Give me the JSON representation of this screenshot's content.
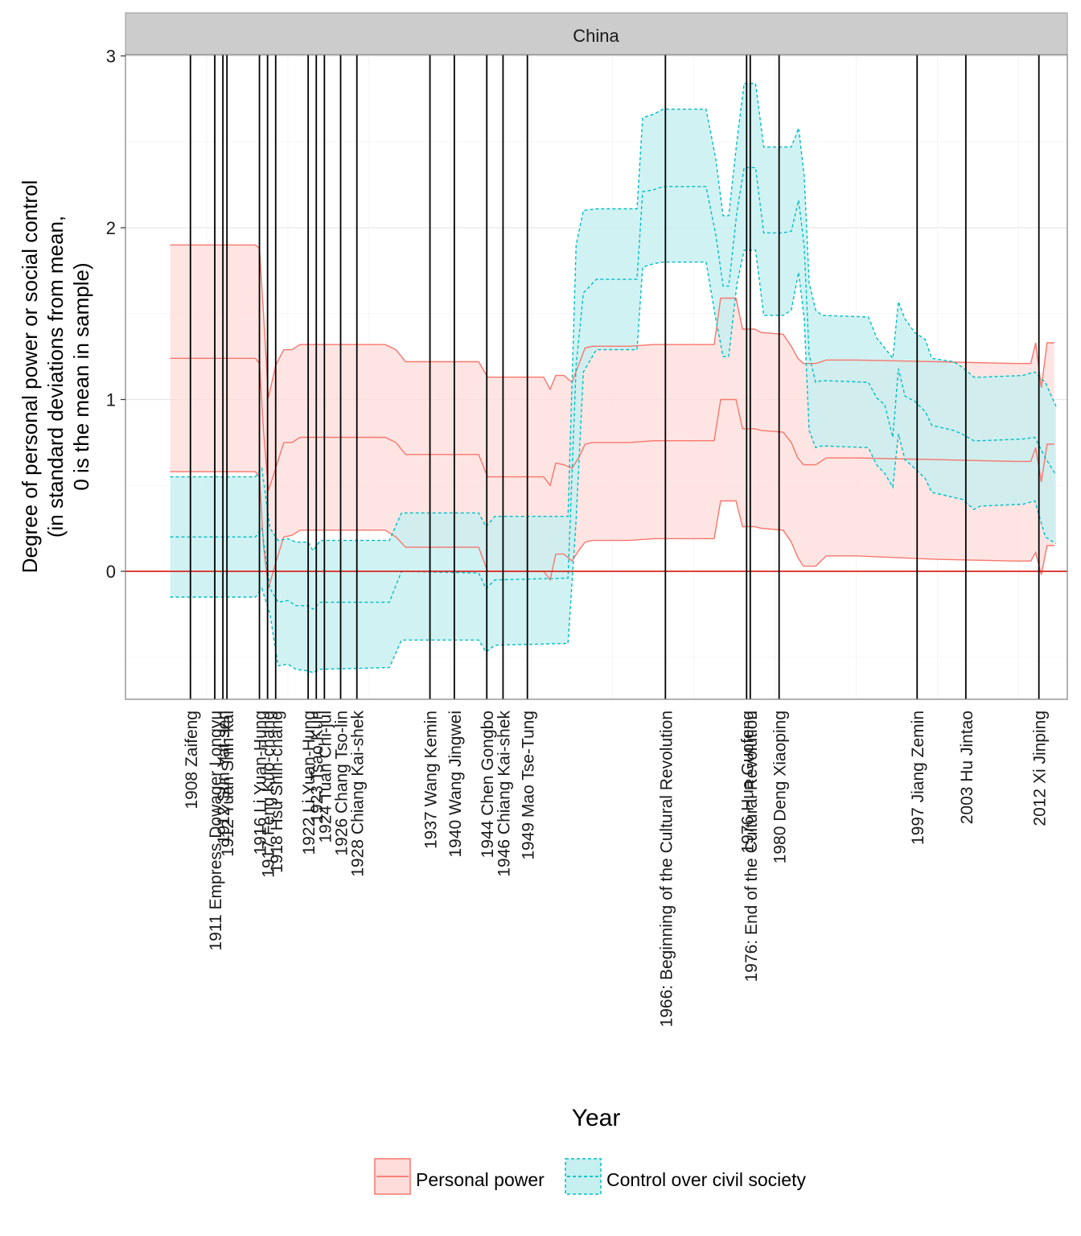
{
  "chart_data": {
    "type": "area",
    "facet_label": "China",
    "xlabel": "Year",
    "ylabel_lines": [
      "Degree of personal power or social control",
      "(in standard deviations from mean,",
      "0 is the mean in sample)"
    ],
    "xlim": [
      1900,
      2016
    ],
    "ylim": [
      -0.75,
      3.0
    ],
    "y_ticks": [
      0,
      1,
      2,
      3
    ],
    "reference_line_y": 0,
    "grid": true,
    "legend_position": "bottom",
    "colors": {
      "personal_power": "#F8766D",
      "personal_power_fill": "#FDDCDA",
      "civil_society": "#00BFC4",
      "civil_society_fill": "#C6EFF0",
      "zero_line": "#D7261E",
      "event_line": "#000000",
      "strip": "#CCCCCC"
    },
    "series": [
      {
        "name": "Personal power",
        "line_style": "solid",
        "points": [
          {
            "x": 1905.5,
            "mid": 1.24,
            "lo": 0.58,
            "hi": 1.9
          },
          {
            "x": 1916.0,
            "mid": 1.24,
            "lo": 0.58,
            "hi": 1.9
          },
          {
            "x": 1916.5,
            "mid": 1.21,
            "lo": 0.55,
            "hi": 1.88
          },
          {
            "x": 1917.0,
            "mid": 0.82,
            "lo": 0.15,
            "hi": 1.5
          },
          {
            "x": 1917.6,
            "mid": 0.47,
            "lo": -0.1,
            "hi": 1.01
          },
          {
            "x": 1918.5,
            "mid": 0.6,
            "lo": 0.05,
            "hi": 1.2
          },
          {
            "x": 1919.5,
            "mid": 0.75,
            "lo": 0.2,
            "hi": 1.29
          },
          {
            "x": 1920.5,
            "mid": 0.75,
            "lo": 0.21,
            "hi": 1.29
          },
          {
            "x": 1921.5,
            "mid": 0.78,
            "lo": 0.24,
            "hi": 1.32
          },
          {
            "x": 1932.0,
            "mid": 0.78,
            "lo": 0.24,
            "hi": 1.32
          },
          {
            "x": 1933.3,
            "mid": 0.75,
            "lo": 0.2,
            "hi": 1.29
          },
          {
            "x": 1934.5,
            "mid": 0.68,
            "lo": 0.14,
            "hi": 1.22
          },
          {
            "x": 1943.5,
            "mid": 0.68,
            "lo": 0.14,
            "hi": 1.22
          },
          {
            "x": 1944.6,
            "mid": 0.55,
            "lo": 0.0,
            "hi": 1.13
          },
          {
            "x": 1951.5,
            "mid": 0.55,
            "lo": 0.0,
            "hi": 1.13
          },
          {
            "x": 1952.3,
            "mid": 0.5,
            "lo": -0.05,
            "hi": 1.06
          },
          {
            "x": 1953.0,
            "mid": 0.63,
            "lo": 0.1,
            "hi": 1.14
          },
          {
            "x": 1954.0,
            "mid": 0.62,
            "lo": 0.1,
            "hi": 1.14
          },
          {
            "x": 1955.0,
            "mid": 0.6,
            "lo": 0.06,
            "hi": 1.1
          },
          {
            "x": 1955.8,
            "mid": 0.66,
            "lo": 0.12,
            "hi": 1.2
          },
          {
            "x": 1956.6,
            "mid": 0.74,
            "lo": 0.17,
            "hi": 1.3
          },
          {
            "x": 1957.5,
            "mid": 0.75,
            "lo": 0.18,
            "hi": 1.31
          },
          {
            "x": 1962.0,
            "mid": 0.75,
            "lo": 0.18,
            "hi": 1.31
          },
          {
            "x": 1965.0,
            "mid": 0.76,
            "lo": 0.19,
            "hi": 1.32
          },
          {
            "x": 1972.5,
            "mid": 0.76,
            "lo": 0.19,
            "hi": 1.32
          },
          {
            "x": 1973.3,
            "mid": 1.0,
            "lo": 0.41,
            "hi": 1.59
          },
          {
            "x": 1975.2,
            "mid": 1.0,
            "lo": 0.41,
            "hi": 1.59
          },
          {
            "x": 1976.0,
            "mid": 0.83,
            "lo": 0.26,
            "hi": 1.41
          },
          {
            "x": 1977.5,
            "mid": 0.83,
            "lo": 0.26,
            "hi": 1.41
          },
          {
            "x": 1978.3,
            "mid": 0.82,
            "lo": 0.25,
            "hi": 1.39
          },
          {
            "x": 1981.0,
            "mid": 0.81,
            "lo": 0.24,
            "hi": 1.38
          },
          {
            "x": 1982.0,
            "mid": 0.75,
            "lo": 0.17,
            "hi": 1.31
          },
          {
            "x": 1982.8,
            "mid": 0.66,
            "lo": 0.08,
            "hi": 1.24
          },
          {
            "x": 1983.5,
            "mid": 0.62,
            "lo": 0.03,
            "hi": 1.21
          },
          {
            "x": 1985.0,
            "mid": 0.62,
            "lo": 0.03,
            "hi": 1.21
          },
          {
            "x": 1986.3,
            "mid": 0.66,
            "lo": 0.09,
            "hi": 1.23
          },
          {
            "x": 1990.0,
            "mid": 0.66,
            "lo": 0.09,
            "hi": 1.23
          },
          {
            "x": 2000.0,
            "mid": 0.65,
            "lo": 0.07,
            "hi": 1.22
          },
          {
            "x": 2009.5,
            "mid": 0.64,
            "lo": 0.06,
            "hi": 1.21
          },
          {
            "x": 2011.5,
            "mid": 0.64,
            "lo": 0.06,
            "hi": 1.21
          },
          {
            "x": 2012.1,
            "mid": 0.72,
            "lo": 0.11,
            "hi": 1.33
          },
          {
            "x": 2012.8,
            "mid": 0.52,
            "lo": -0.02,
            "hi": 1.07
          },
          {
            "x": 2013.5,
            "mid": 0.74,
            "lo": 0.15,
            "hi": 1.33
          },
          {
            "x": 2014.4,
            "mid": 0.74,
            "lo": 0.15,
            "hi": 1.33
          }
        ]
      },
      {
        "name": "Control over civil society",
        "line_style": "dashed",
        "points": [
          {
            "x": 1905.5,
            "mid": 0.2,
            "lo": -0.15,
            "hi": 0.55
          },
          {
            "x": 1916.0,
            "mid": 0.2,
            "lo": -0.15,
            "hi": 0.55
          },
          {
            "x": 1916.8,
            "mid": 0.25,
            "lo": -0.1,
            "hi": 0.6
          },
          {
            "x": 1917.8,
            "mid": -0.1,
            "lo": -0.25,
            "hi": 0.25
          },
          {
            "x": 1918.8,
            "mid": -0.18,
            "lo": -0.55,
            "hi": 0.18
          },
          {
            "x": 1920.0,
            "mid": -0.17,
            "lo": -0.54,
            "hi": 0.19
          },
          {
            "x": 1921.0,
            "mid": -0.2,
            "lo": -0.57,
            "hi": 0.17
          },
          {
            "x": 1922.5,
            "mid": -0.2,
            "lo": -0.58,
            "hi": 0.17
          },
          {
            "x": 1923.1,
            "mid": -0.22,
            "lo": -0.59,
            "hi": 0.12
          },
          {
            "x": 1924.0,
            "mid": -0.18,
            "lo": -0.57,
            "hi": 0.18
          },
          {
            "x": 1932.5,
            "mid": -0.18,
            "lo": -0.56,
            "hi": 0.18
          },
          {
            "x": 1934.0,
            "mid": 0.0,
            "lo": -0.4,
            "hi": 0.34
          },
          {
            "x": 1943.5,
            "mid": -0.01,
            "lo": -0.4,
            "hi": 0.34
          },
          {
            "x": 1944.4,
            "mid": -0.1,
            "lo": -0.47,
            "hi": 0.26
          },
          {
            "x": 1945.5,
            "mid": -0.05,
            "lo": -0.43,
            "hi": 0.32
          },
          {
            "x": 1954.0,
            "mid": -0.04,
            "lo": -0.42,
            "hi": 0.32
          },
          {
            "x": 1954.5,
            "mid": -0.04,
            "lo": -0.42,
            "hi": 0.32
          },
          {
            "x": 1955.5,
            "mid": 1.2,
            "lo": 0.3,
            "hi": 1.9
          },
          {
            "x": 1956.4,
            "mid": 1.62,
            "lo": 1.16,
            "hi": 2.1
          },
          {
            "x": 1958.0,
            "mid": 1.7,
            "lo": 1.29,
            "hi": 2.11
          },
          {
            "x": 1963.0,
            "mid": 1.7,
            "lo": 1.29,
            "hi": 2.11
          },
          {
            "x": 1963.7,
            "mid": 2.21,
            "lo": 1.77,
            "hi": 2.64
          },
          {
            "x": 1965.0,
            "mid": 2.22,
            "lo": 1.79,
            "hi": 2.66
          },
          {
            "x": 1966.2,
            "mid": 2.24,
            "lo": 1.8,
            "hi": 2.69
          },
          {
            "x": 1971.5,
            "mid": 2.24,
            "lo": 1.8,
            "hi": 2.69
          },
          {
            "x": 1972.7,
            "mid": 1.96,
            "lo": 1.47,
            "hi": 2.4
          },
          {
            "x": 1973.6,
            "mid": 1.66,
            "lo": 1.25,
            "hi": 2.07
          },
          {
            "x": 1974.3,
            "mid": 1.66,
            "lo": 1.25,
            "hi": 2.07
          },
          {
            "x": 1975.3,
            "mid": 2.09,
            "lo": 1.67,
            "hi": 2.5
          },
          {
            "x": 1976.2,
            "mid": 2.35,
            "lo": 1.87,
            "hi": 2.84
          },
          {
            "x": 1977.6,
            "mid": 2.35,
            "lo": 1.87,
            "hi": 2.84
          },
          {
            "x": 1978.6,
            "mid": 1.97,
            "lo": 1.49,
            "hi": 2.47
          },
          {
            "x": 1981.0,
            "mid": 1.97,
            "lo": 1.49,
            "hi": 2.47
          },
          {
            "x": 1982.0,
            "mid": 1.98,
            "lo": 1.52,
            "hi": 2.47
          },
          {
            "x": 1982.9,
            "mid": 2.16,
            "lo": 1.74,
            "hi": 2.58
          },
          {
            "x": 1983.6,
            "mid": 1.89,
            "lo": 1.47,
            "hi": 2.3
          },
          {
            "x": 1984.2,
            "mid": 1.26,
            "lo": 0.82,
            "hi": 1.68
          },
          {
            "x": 1985.0,
            "mid": 1.1,
            "lo": 0.72,
            "hi": 1.52
          },
          {
            "x": 1985.8,
            "mid": 1.11,
            "lo": 0.73,
            "hi": 1.49
          },
          {
            "x": 1991.5,
            "mid": 1.1,
            "lo": 0.72,
            "hi": 1.48
          },
          {
            "x": 1992.5,
            "mid": 1.01,
            "lo": 0.62,
            "hi": 1.36
          },
          {
            "x": 1993.5,
            "mid": 0.97,
            "lo": 0.57,
            "hi": 1.3
          },
          {
            "x": 1994.5,
            "mid": 0.78,
            "lo": 0.49,
            "hi": 1.24
          },
          {
            "x": 1995.2,
            "mid": 1.18,
            "lo": 0.8,
            "hi": 1.57
          },
          {
            "x": 1996.0,
            "mid": 1.02,
            "lo": 0.65,
            "hi": 1.47
          },
          {
            "x": 1997.2,
            "mid": 0.99,
            "lo": 0.6,
            "hi": 1.39
          },
          {
            "x": 1998.5,
            "mid": 0.93,
            "lo": 0.54,
            "hi": 1.35
          },
          {
            "x": 1999.3,
            "mid": 0.85,
            "lo": 0.46,
            "hi": 1.24
          },
          {
            "x": 2002.0,
            "mid": 0.82,
            "lo": 0.43,
            "hi": 1.22
          },
          {
            "x": 2003.0,
            "mid": 0.8,
            "lo": 0.42,
            "hi": 1.19
          },
          {
            "x": 2004.5,
            "mid": 0.76,
            "lo": 0.36,
            "hi": 1.13
          },
          {
            "x": 2005.3,
            "mid": 0.76,
            "lo": 0.38,
            "hi": 1.13
          },
          {
            "x": 2010.5,
            "mid": 0.77,
            "lo": 0.39,
            "hi": 1.14
          },
          {
            "x": 2012.0,
            "mid": 0.78,
            "lo": 0.41,
            "hi": 1.16
          },
          {
            "x": 2013.3,
            "mid": 0.66,
            "lo": 0.2,
            "hi": 1.1
          },
          {
            "x": 2014.6,
            "mid": 0.56,
            "lo": 0.16,
            "hi": 0.96
          }
        ]
      }
    ],
    "events": [
      {
        "year": 1908.0,
        "label": "1908 Zaifeng"
      },
      {
        "year": 1911.0,
        "label": "1911 Empress Dowager Longyu"
      },
      {
        "year": 1912.0,
        "label": "1912 Sun Yat-sen"
      },
      {
        "year": 1912.5,
        "label": "1912 Yuan Shih-kai"
      },
      {
        "year": 1916.5,
        "label": "1916 Li Yuan-Hung"
      },
      {
        "year": 1917.5,
        "label": "1917 Feng Kuo-chang"
      },
      {
        "year": 1918.5,
        "label": "1918 Hsu Shih-chang"
      },
      {
        "year": 1922.5,
        "label": "1922 Li Yuan-Hung"
      },
      {
        "year": 1923.5,
        "label": "1923 Tsao Kun"
      },
      {
        "year": 1924.5,
        "label": "1924 Tuan Chi-jui"
      },
      {
        "year": 1926.5,
        "label": "1926 Chang Tso-lin"
      },
      {
        "year": 1928.5,
        "label": "1928 Chiang Kai-shek"
      },
      {
        "year": 1937.5,
        "label": "1937 Wang Kemin"
      },
      {
        "year": 1940.5,
        "label": "1940 Wang Jingwei"
      },
      {
        "year": 1944.5,
        "label": "1944 Chen Gongbo"
      },
      {
        "year": 1946.5,
        "label": "1946 Chiang Kai-shek"
      },
      {
        "year": 1949.5,
        "label": "1949 Mao Tse-Tung"
      },
      {
        "year": 1966.5,
        "label": "1966: Beginning of the Cultural Revolution"
      },
      {
        "year": 1976.5,
        "label": "1976 Hua Guofeng"
      },
      {
        "year": 1976.95,
        "label": "1976: End of the Cultural Revolution"
      },
      {
        "year": 1980.5,
        "label": "1980 Deng Xiaoping"
      },
      {
        "year": 1997.5,
        "label": "1997 Jiang Zemin"
      },
      {
        "year": 2003.5,
        "label": "2003 Hu Jintao"
      },
      {
        "year": 2012.5,
        "label": "2012 Xi Jinping"
      }
    ],
    "legend": [
      {
        "label": "Personal power",
        "series_index": 0
      },
      {
        "label": "Control over civil society",
        "series_index": 1
      }
    ]
  }
}
